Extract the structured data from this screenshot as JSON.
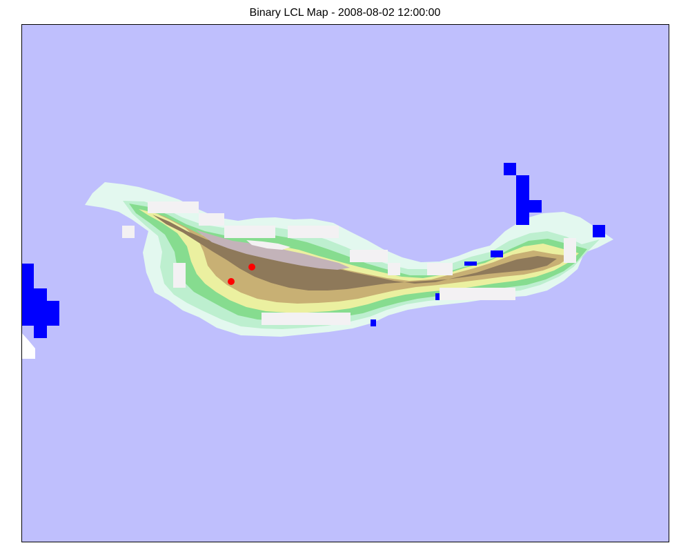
{
  "map": {
    "title": "Binary LCL Map - 2008-08-02 12:00:00"
  },
  "colors": {
    "sea": "#bfbffd",
    "lcl_flag": "#0000ff",
    "station": "#ff0000",
    "frame": "#000000",
    "terrain_ramp": [
      "#e6fbe6",
      "#b9efc9",
      "#7ed98b",
      "#e9f0a0",
      "#c9b273",
      "#8f7a5a",
      "#b7a3aa",
      "#f5f3f4"
    ]
  },
  "markers": [
    {
      "type": "station",
      "icon": "red-dot"
    },
    {
      "type": "station",
      "icon": "red-dot"
    }
  ]
}
